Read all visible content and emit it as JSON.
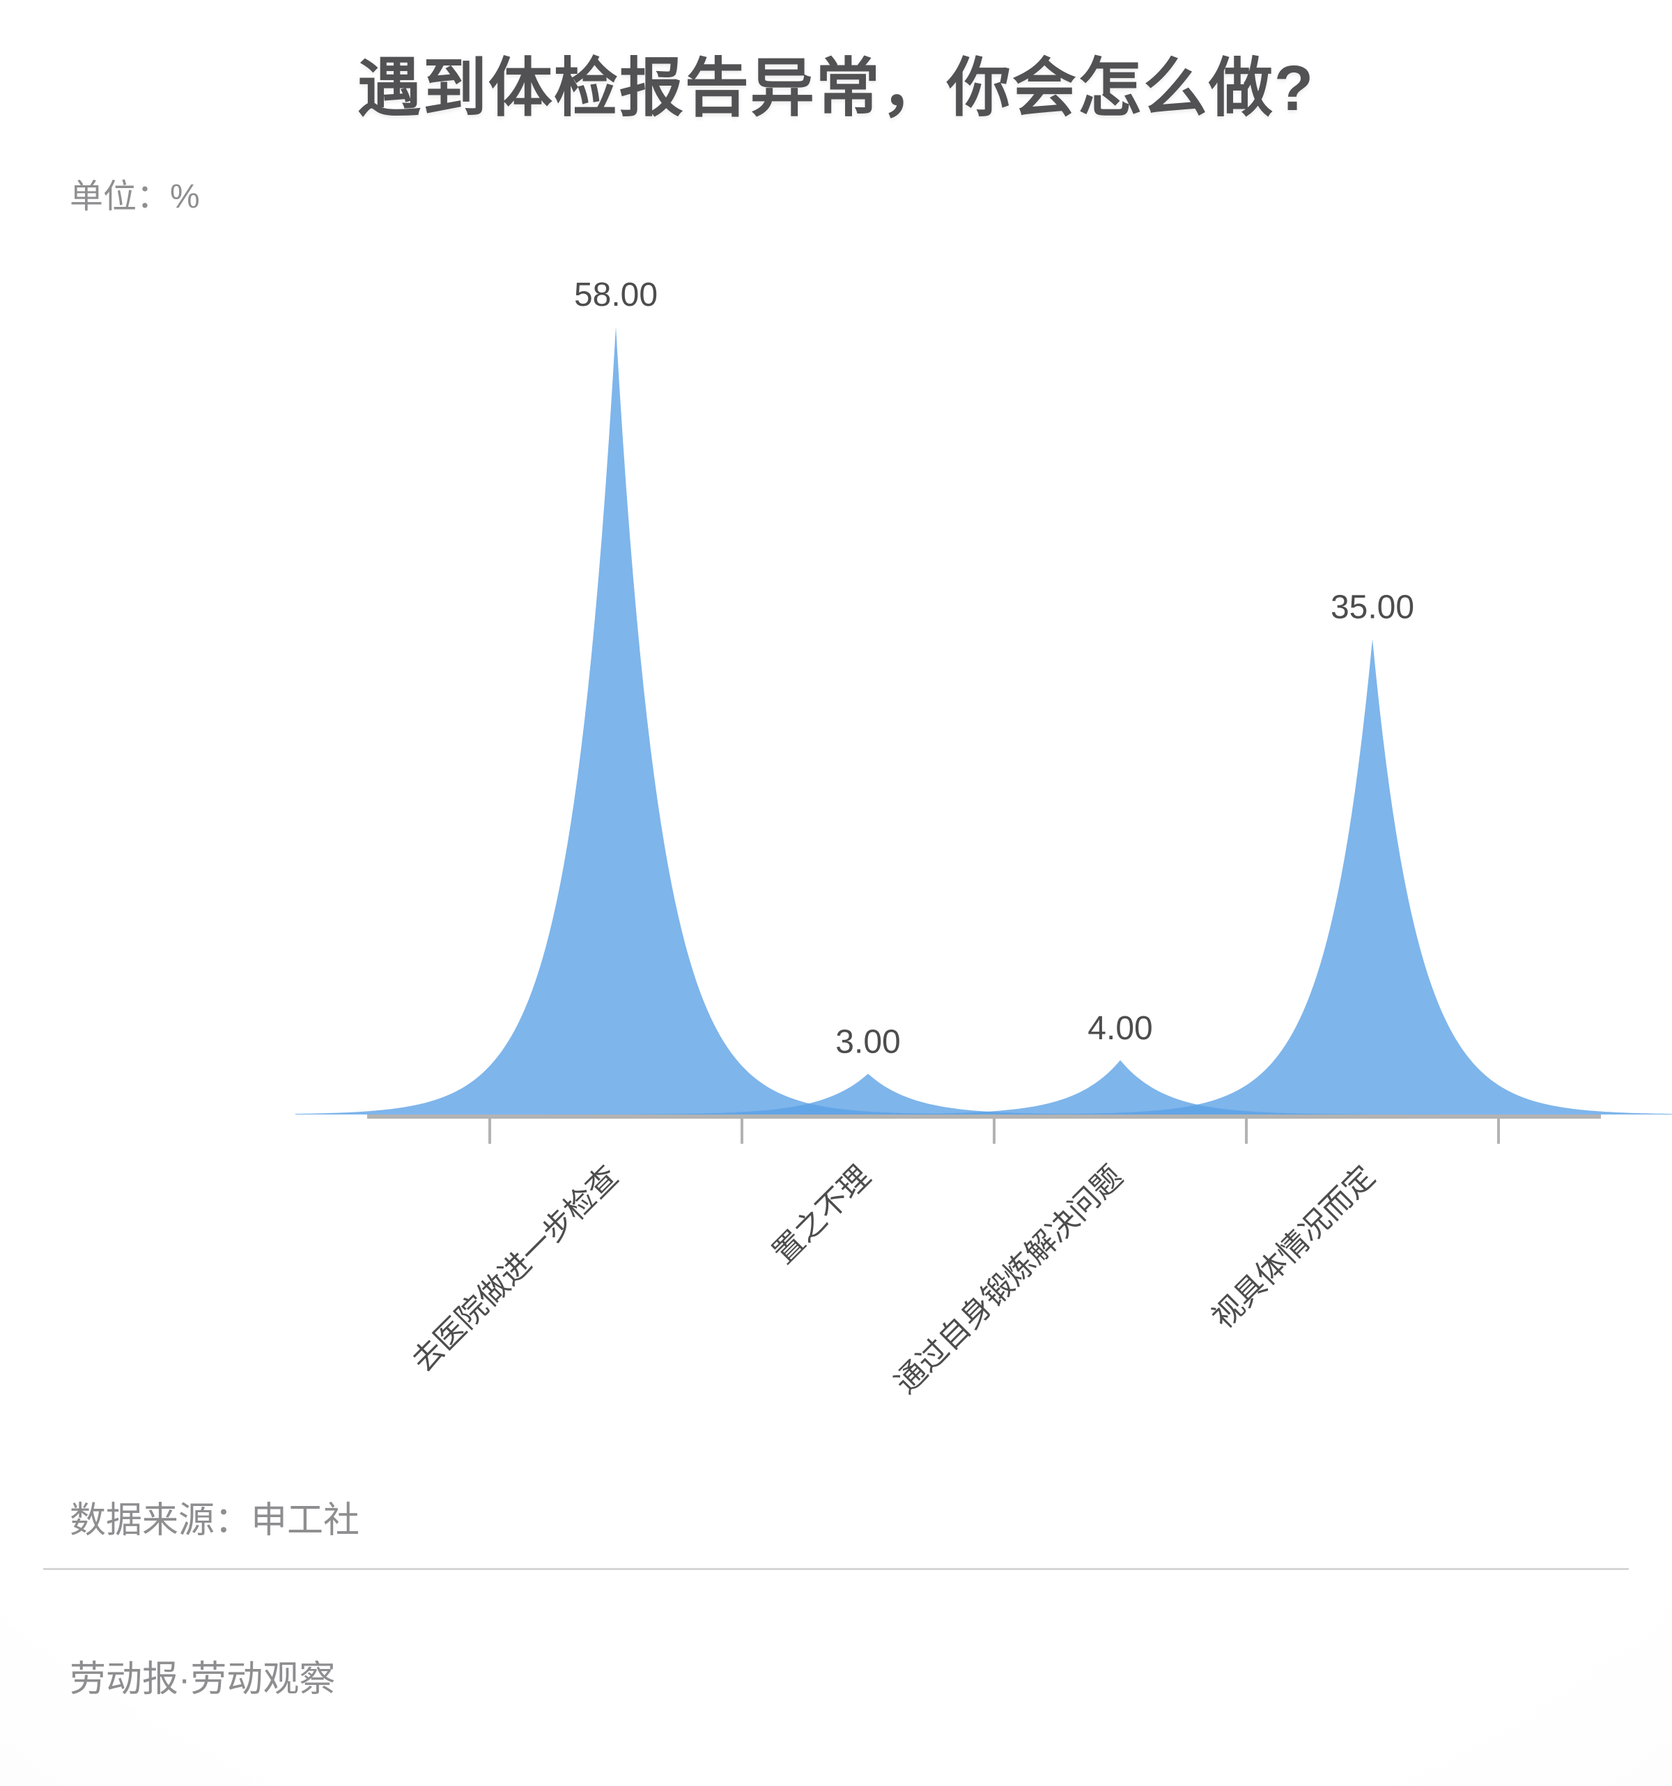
{
  "title": "遇到体检报告异常，你会怎么做?",
  "unit_label": "单位：%",
  "source": "数据来源：申工社",
  "footer": "劳动报·劳动观察",
  "chart_data": {
    "type": "area",
    "style": "sharp-peak-spikes",
    "title": "遇到体检报告异常，你会怎么做?",
    "unit": "%",
    "categories": [
      "去医院做进一步检查",
      "置之不理",
      "通过自身锻炼解决问题",
      "视具体情况而定"
    ],
    "values": [
      58,
      3,
      4,
      35
    ],
    "value_labels": [
      "58.00",
      "3.00",
      "4.00",
      "35.00"
    ],
    "ylim": [
      0,
      60
    ],
    "grid": false,
    "legend": "none",
    "x_label_rotation_deg": 45,
    "fill_color": "#5aa0e5",
    "fill_opacity": 0.78,
    "axis_color": "#b3b3b3",
    "label_color": "#4d4d4d"
  }
}
